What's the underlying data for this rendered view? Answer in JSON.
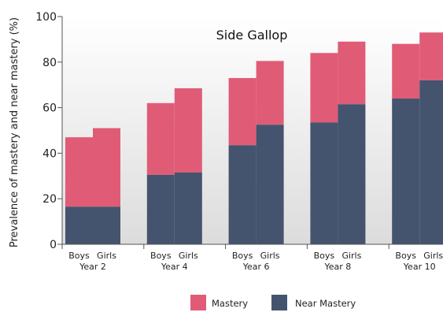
{
  "chart_data": {
    "type": "bar",
    "stacked": true,
    "title": "Side Gallop",
    "ylabel": "Prevalence of mastery and near mastery (%)",
    "xlabel": "",
    "ylim": [
      0,
      100
    ],
    "yticks": [
      0,
      20,
      40,
      60,
      80,
      100
    ],
    "grid": false,
    "legend_position": "bottom",
    "groups": [
      "Year 2",
      "Year 4",
      "Year 6",
      "Year 8",
      "Year 10"
    ],
    "sub_categories": [
      "Boys",
      "Girls"
    ],
    "series": [
      {
        "name": "Near Mastery",
        "color": "#44546e",
        "values": [
          [
            16.5,
            16.5
          ],
          [
            30.5,
            31.5
          ],
          [
            43.5,
            52.5
          ],
          [
            53.5,
            61.5
          ],
          [
            64,
            72
          ]
        ]
      },
      {
        "name": "Mastery",
        "color": "#e05c76",
        "values": [
          [
            30.5,
            34.5
          ],
          [
            31.5,
            37
          ],
          [
            29.5,
            28
          ],
          [
            30.5,
            27.5
          ],
          [
            24,
            21
          ]
        ]
      }
    ],
    "legend": [
      {
        "label": "Mastery",
        "color": "#e05c76"
      },
      {
        "label": "Near Mastery",
        "color": "#44546e"
      }
    ],
    "background_gradient": [
      "#ffffff",
      "#dcdcdc"
    ]
  }
}
